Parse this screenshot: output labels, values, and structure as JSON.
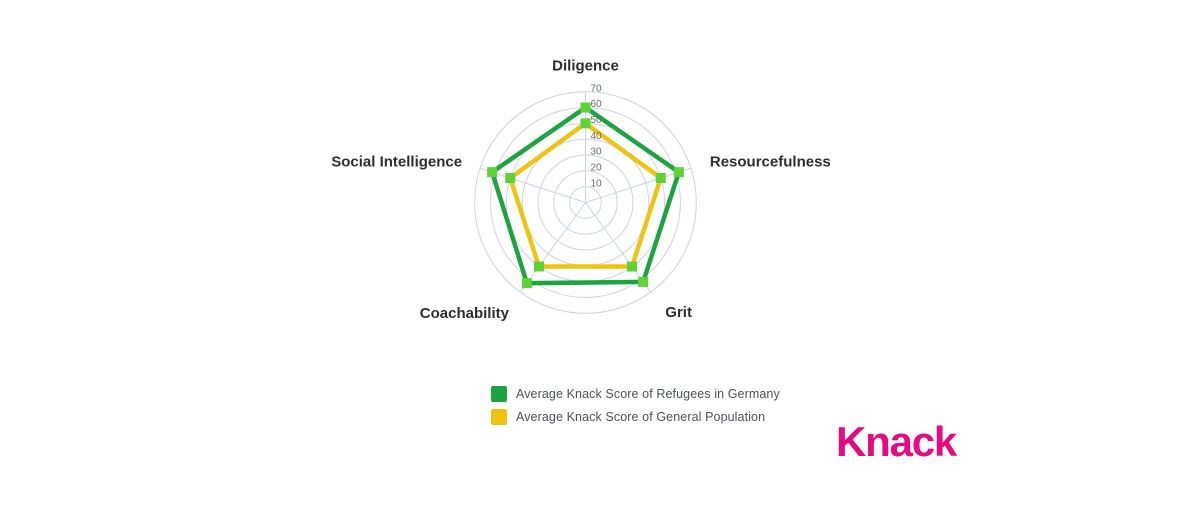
{
  "chart_data": {
    "type": "radar",
    "title": "",
    "categories": [
      "Diligence",
      "Resourcefulness",
      "Grit",
      "Coachability",
      "Social Intelligence"
    ],
    "series": [
      {
        "name": "Average Knack Score of Refugees in Germany",
        "line_color": "#1ca53f",
        "marker_color": "#5ed338",
        "values": [
          60,
          62,
          62,
          63,
          62
        ]
      },
      {
        "name": "Average Knack Score of General Population",
        "line_color": "#f0c313",
        "marker_color": "#5ed338",
        "values": [
          50,
          50,
          50,
          50,
          50
        ]
      }
    ],
    "radial_ticks": [
      10,
      20,
      30,
      40,
      50,
      60,
      70
    ],
    "rmax": 70,
    "grid": true,
    "grid_shape": "circles",
    "grid_color": "#cdd3e6",
    "tick_label_color": "#6a6d72",
    "axis_label_color": "#2e2e2e",
    "legend_position": "bottom"
  },
  "logo": {
    "text": "Knack",
    "color": "#e7097f"
  }
}
